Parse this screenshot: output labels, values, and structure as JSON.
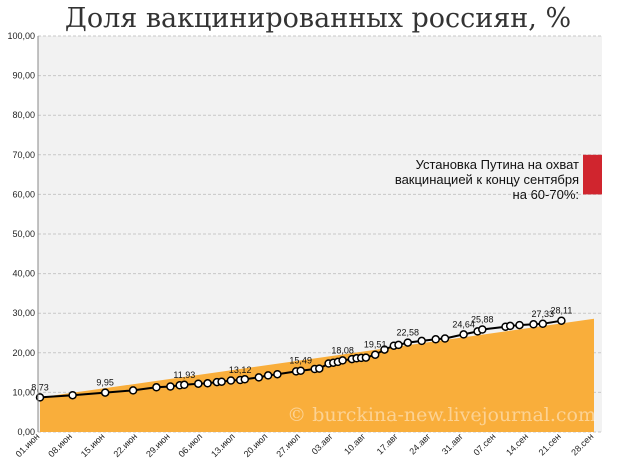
{
  "chart_data": {
    "type": "area",
    "title": "Доля вакцинированных россиян, %",
    "xlabel": "",
    "ylabel": "",
    "ylim": [
      0,
      100
    ],
    "yticks": [
      "0,00",
      "10,00",
      "20,00",
      "30,00",
      "40,00",
      "50,00",
      "60,00",
      "70,00",
      "80,00",
      "90,00",
      "100,00"
    ],
    "xlim": [
      "2021-06-01",
      "2021-09-28"
    ],
    "xticks": [
      {
        "date": "2021-06-01",
        "label": "01.июн"
      },
      {
        "date": "2021-06-08",
        "label": "08.июн"
      },
      {
        "date": "2021-06-15",
        "label": "15.июн"
      },
      {
        "date": "2021-06-22",
        "label": "22.июн"
      },
      {
        "date": "2021-06-29",
        "label": "29.июн"
      },
      {
        "date": "2021-07-06",
        "label": "06.июл"
      },
      {
        "date": "2021-07-13",
        "label": "13.июл"
      },
      {
        "date": "2021-07-20",
        "label": "20.июл"
      },
      {
        "date": "2021-07-27",
        "label": "27.июл"
      },
      {
        "date": "2021-08-03",
        "label": "03.авг"
      },
      {
        "date": "2021-08-10",
        "label": "10.авг"
      },
      {
        "date": "2021-08-17",
        "label": "17.авг"
      },
      {
        "date": "2021-08-24",
        "label": "24.авг"
      },
      {
        "date": "2021-08-31",
        "label": "31.авг"
      },
      {
        "date": "2021-09-07",
        "label": "07.сен"
      },
      {
        "date": "2021-09-14",
        "label": "14.сен"
      },
      {
        "date": "2021-09-21",
        "label": "21.сен"
      },
      {
        "date": "2021-09-28",
        "label": "28.сен"
      }
    ],
    "grid": true,
    "area_series": {
      "x": [
        "2021-06-01",
        "2021-09-28"
      ],
      "y": [
        8.73,
        28.6
      ],
      "color": "#f9ae3b"
    },
    "line_series": {
      "color": "#000000",
      "points": [
        {
          "x": "2021-06-01",
          "y": 8.73
        },
        {
          "x": "2021-06-08",
          "y": 9.3
        },
        {
          "x": "2021-06-15",
          "y": 9.95
        },
        {
          "x": "2021-06-21",
          "y": 10.5
        },
        {
          "x": "2021-06-26",
          "y": 11.3
        },
        {
          "x": "2021-06-29",
          "y": 11.5
        },
        {
          "x": "2021-07-01",
          "y": 11.8
        },
        {
          "x": "2021-07-02",
          "y": 11.93
        },
        {
          "x": "2021-07-05",
          "y": 12.2
        },
        {
          "x": "2021-07-07",
          "y": 12.3
        },
        {
          "x": "2021-07-09",
          "y": 12.6
        },
        {
          "x": "2021-07-10",
          "y": 12.7
        },
        {
          "x": "2021-07-12",
          "y": 13.0
        },
        {
          "x": "2021-07-14",
          "y": 13.12
        },
        {
          "x": "2021-07-15",
          "y": 13.3
        },
        {
          "x": "2021-07-18",
          "y": 13.8
        },
        {
          "x": "2021-07-20",
          "y": 14.3
        },
        {
          "x": "2021-07-22",
          "y": 14.6
        },
        {
          "x": "2021-07-26",
          "y": 15.3
        },
        {
          "x": "2021-07-27",
          "y": 15.49
        },
        {
          "x": "2021-07-30",
          "y": 15.9
        },
        {
          "x": "2021-07-31",
          "y": 16.0
        },
        {
          "x": "2021-08-02",
          "y": 17.3
        },
        {
          "x": "2021-08-03",
          "y": 17.5
        },
        {
          "x": "2021-08-04",
          "y": 17.7
        },
        {
          "x": "2021-08-05",
          "y": 18.08
        },
        {
          "x": "2021-08-07",
          "y": 18.4
        },
        {
          "x": "2021-08-08",
          "y": 18.6
        },
        {
          "x": "2021-08-09",
          "y": 18.7
        },
        {
          "x": "2021-08-10",
          "y": 18.8
        },
        {
          "x": "2021-08-12",
          "y": 19.51
        },
        {
          "x": "2021-08-14",
          "y": 20.8
        },
        {
          "x": "2021-08-16",
          "y": 21.8
        },
        {
          "x": "2021-08-17",
          "y": 22.0
        },
        {
          "x": "2021-08-19",
          "y": 22.58
        },
        {
          "x": "2021-08-22",
          "y": 23.0
        },
        {
          "x": "2021-08-25",
          "y": 23.4
        },
        {
          "x": "2021-08-27",
          "y": 23.6
        },
        {
          "x": "2021-08-31",
          "y": 24.64
        },
        {
          "x": "2021-09-03",
          "y": 25.4
        },
        {
          "x": "2021-09-04",
          "y": 25.88
        },
        {
          "x": "2021-09-09",
          "y": 26.6
        },
        {
          "x": "2021-09-10",
          "y": 26.8
        },
        {
          "x": "2021-09-12",
          "y": 27.0
        },
        {
          "x": "2021-09-15",
          "y": 27.2
        },
        {
          "x": "2021-09-17",
          "y": 27.33
        },
        {
          "x": "2021-09-21",
          "y": 28.11
        }
      ],
      "labels": [
        {
          "x": "2021-06-01",
          "y": 8.73,
          "text": "8,73"
        },
        {
          "x": "2021-06-15",
          "y": 9.95,
          "text": "9,95"
        },
        {
          "x": "2021-07-02",
          "y": 11.93,
          "text": "11,93"
        },
        {
          "x": "2021-07-14",
          "y": 13.12,
          "text": "13,12"
        },
        {
          "x": "2021-07-27",
          "y": 15.49,
          "text": "15,49"
        },
        {
          "x": "2021-08-05",
          "y": 18.08,
          "text": "18,08"
        },
        {
          "x": "2021-08-12",
          "y": 19.51,
          "text": "19,51"
        },
        {
          "x": "2021-08-19",
          "y": 22.58,
          "text": "22,58"
        },
        {
          "x": "2021-08-31",
          "y": 24.64,
          "text": "24,64"
        },
        {
          "x": "2021-09-04",
          "y": 25.88,
          "text": "25,88"
        },
        {
          "x": "2021-09-17",
          "y": 27.33,
          "text": "27,33"
        },
        {
          "x": "2021-09-21",
          "y": 28.11,
          "text": "28,11"
        }
      ]
    },
    "target_band": {
      "range": [
        60,
        70
      ],
      "color": "#d0252e",
      "annotation_lines": [
        "Установка Путина на охват",
        "вакцинацией к концу сентября",
        "на 60-70%:"
      ]
    },
    "watermark": "© burckina-new.livejournal.com"
  }
}
